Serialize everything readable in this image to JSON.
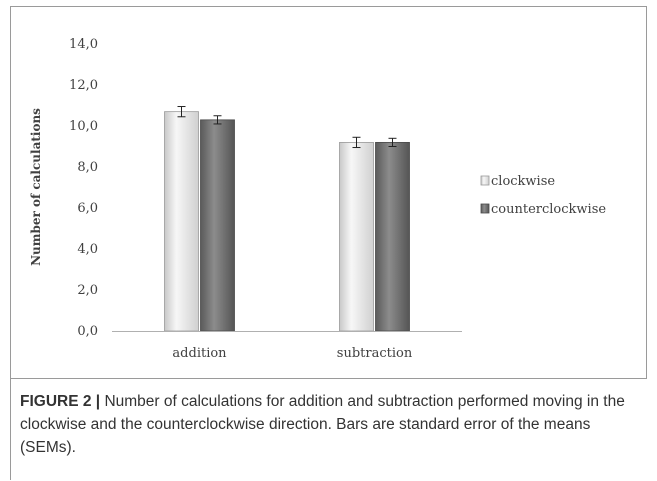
{
  "chart_data": {
    "type": "bar",
    "categories": [
      "addition",
      "subtraction"
    ],
    "series": [
      {
        "name": "clockwise",
        "values": [
          10.7,
          9.2
        ],
        "errors": [
          0.25,
          0.25
        ],
        "color": "#e6e6e6"
      },
      {
        "name": "counterclockwise",
        "values": [
          10.3,
          9.2
        ],
        "errors": [
          0.2,
          0.2
        ],
        "color": "#7a7a7a"
      }
    ],
    "ylabel": "Number of calculations",
    "xlabel": "",
    "ylim": [
      0,
      14
    ],
    "yticks": [
      "0,0",
      "2,0",
      "4,0",
      "6,0",
      "8,0",
      "10,0",
      "12,0",
      "14,0"
    ],
    "ytick_values": [
      0,
      2,
      4,
      6,
      8,
      10,
      12,
      14
    ],
    "legend_position": "right",
    "grid": false
  },
  "caption": {
    "label": "FIGURE 2 |",
    "text": " Number of calculations for addition and subtraction performed moving in the clockwise and the counterclockwise direction. Bars are standard error of the means (SEMs)."
  }
}
